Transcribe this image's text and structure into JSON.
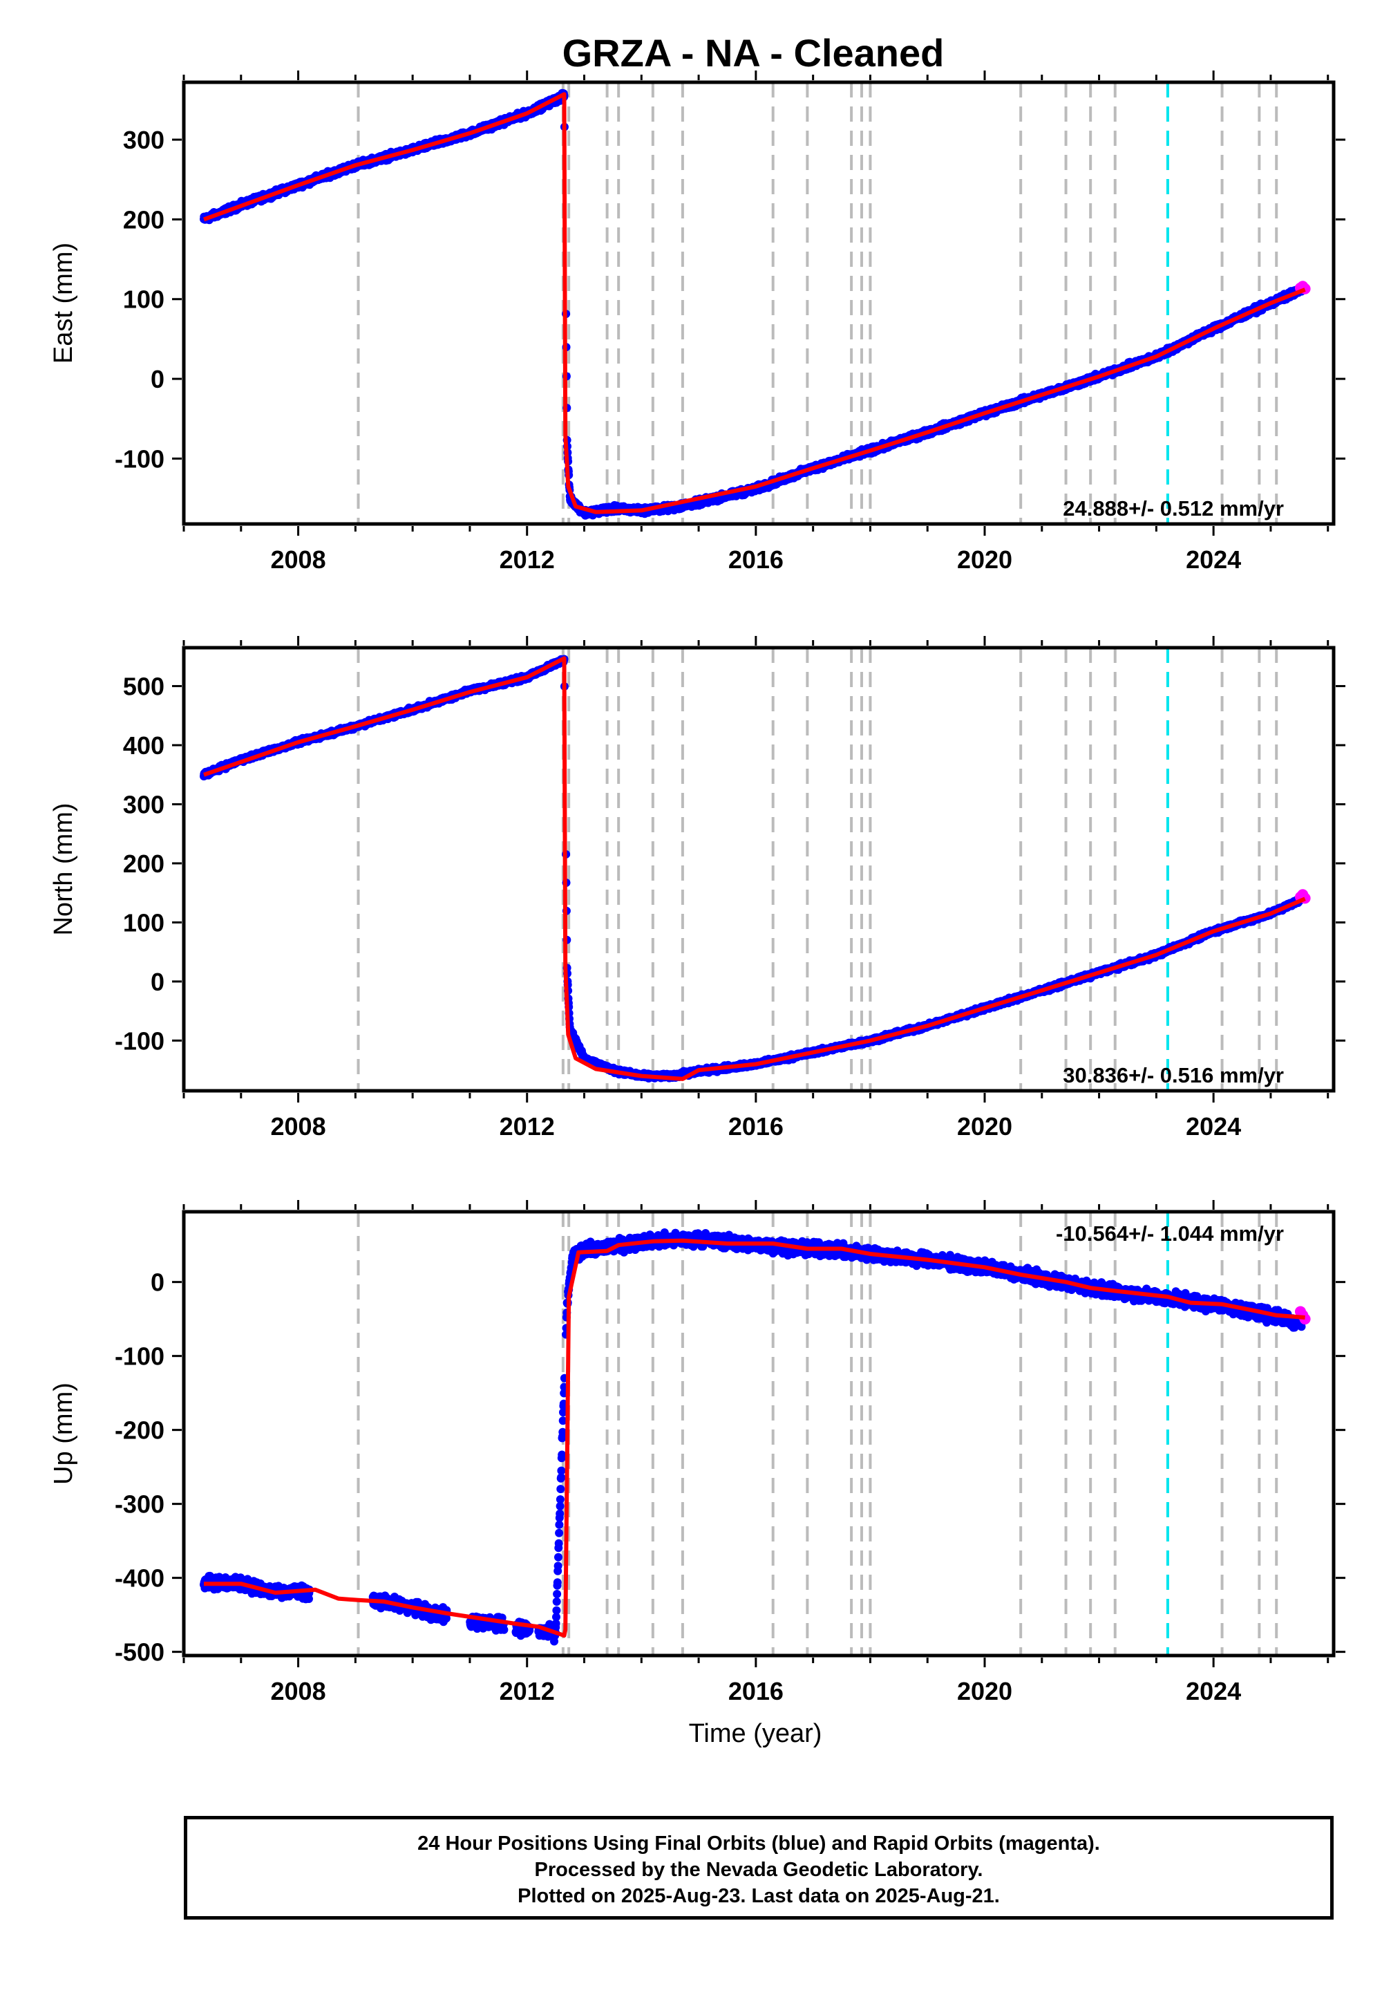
{
  "figure": {
    "title": "GRZA  - NA - Cleaned",
    "xlabel": "Time (year)",
    "footer": [
      "24 Hour Positions Using Final Orbits (blue) and Rapid Orbits (magenta).",
      "Processed by the Nevada Geodetic Laboratory.",
      "Plotted on 2025-Aug-23. Last data on 2025-Aug-21."
    ],
    "colors": {
      "final_orbits": "#0000ff",
      "rapid_orbits": "#ff00ff",
      "model_fit": "#ff0000",
      "event_lines": "#bbbbbb",
      "highlight_event_line": "#00e5ee"
    }
  },
  "chart_data": [
    {
      "type": "scatter",
      "panel": "east",
      "ylabel": "East (mm)",
      "rate_label": "24.888+/- 0.512 mm/yr",
      "xlim": [
        2006.0,
        2026.1
      ],
      "ylim": [
        -182,
        372
      ],
      "xticks": [
        2008,
        2012,
        2016,
        2020,
        2024
      ],
      "yticks": [
        -100,
        0,
        100,
        200,
        300
      ],
      "grid": false,
      "event_lines": [
        2009.05,
        2012.63,
        2012.73,
        2013.4,
        2013.6,
        2014.2,
        2014.72,
        2016.3,
        2016.9,
        2017.67,
        2017.85,
        2018.0,
        2020.63,
        2021.42,
        2021.85,
        2022.28,
        2023.2,
        2024.15,
        2024.8,
        2025.1
      ],
      "highlight_event_line": 2023.2,
      "series": [
        {
          "name": "Final Orbits",
          "x": [
            2006.35,
            2007.0,
            2008.0,
            2009.0,
            2010.0,
            2011.0,
            2012.0,
            2012.65,
            2012.7,
            2012.75,
            2013.0,
            2013.5,
            2014.0,
            2014.5,
            2015.0,
            2016.0,
            2017.0,
            2018.0,
            2019.0,
            2020.0,
            2021.0,
            2022.0,
            2023.0,
            2024.0,
            2025.0,
            2025.55
          ],
          "y": [
            200,
            218,
            243,
            268,
            287,
            308,
            333,
            355,
            -80,
            -150,
            -168,
            -163,
            -165,
            -162,
            -155,
            -138,
            -112,
            -90,
            -67,
            -43,
            -20,
            3,
            28,
            63,
            95,
            112
          ]
        },
        {
          "name": "Rapid Orbits",
          "x": [
            2025.52,
            2025.56,
            2025.6
          ],
          "y": [
            114,
            116,
            113
          ]
        },
        {
          "name": "Model Fit",
          "x": [
            2006.35,
            2008.0,
            2009.0,
            2010.0,
            2011.0,
            2012.0,
            2012.65,
            2012.67,
            2012.72,
            2012.85,
            2013.2,
            2014.0,
            2015.0,
            2016.0,
            2017.0,
            2018.0,
            2019.0,
            2020.0,
            2021.0,
            2022.0,
            2023.0,
            2024.0,
            2025.0,
            2025.6
          ],
          "y": [
            200,
            243,
            268,
            287,
            308,
            333,
            357,
            -70,
            -135,
            -160,
            -167,
            -165,
            -150,
            -135,
            -112,
            -90,
            -67,
            -43,
            -20,
            3,
            28,
            63,
            95,
            112
          ]
        }
      ]
    },
    {
      "type": "scatter",
      "panel": "north",
      "ylabel": "North (mm)",
      "rate_label": "30.836+/- 0.516 mm/yr",
      "xlim": [
        2006.0,
        2026.1
      ],
      "ylim": [
        -185,
        565
      ],
      "xticks": [
        2008,
        2012,
        2016,
        2020,
        2024
      ],
      "yticks": [
        -100,
        0,
        100,
        200,
        300,
        400,
        500
      ],
      "grid": false,
      "event_lines": [
        2009.05,
        2012.63,
        2012.73,
        2013.4,
        2013.6,
        2014.2,
        2014.72,
        2016.3,
        2016.9,
        2017.67,
        2017.85,
        2018.0,
        2020.63,
        2021.42,
        2021.85,
        2022.28,
        2023.2,
        2024.15,
        2024.8,
        2025.1
      ],
      "highlight_event_line": 2023.2,
      "series": [
        {
          "name": "Final Orbits",
          "x": [
            2006.35,
            2007.0,
            2008.0,
            2009.0,
            2010.0,
            2011.0,
            2012.0,
            2012.65,
            2012.7,
            2012.75,
            2013.0,
            2013.5,
            2014.0,
            2014.5,
            2015.0,
            2016.0,
            2017.0,
            2018.0,
            2019.0,
            2020.0,
            2021.0,
            2022.0,
            2023.0,
            2024.0,
            2025.0,
            2025.55
          ],
          "y": [
            350,
            375,
            405,
            432,
            460,
            492,
            515,
            545,
            20,
            -80,
            -130,
            -150,
            -160,
            -160,
            -152,
            -140,
            -120,
            -100,
            -75,
            -45,
            -15,
            15,
            45,
            85,
            115,
            140
          ]
        },
        {
          "name": "Rapid Orbits",
          "x": [
            2025.52,
            2025.56,
            2025.6
          ],
          "y": [
            143,
            147,
            141
          ]
        },
        {
          "name": "Model Fit",
          "x": [
            2006.35,
            2008.0,
            2009.0,
            2010.0,
            2011.0,
            2012.0,
            2012.65,
            2012.67,
            2012.72,
            2012.85,
            2013.2,
            2014.0,
            2014.72,
            2015.0,
            2016.0,
            2017.0,
            2018.0,
            2019.0,
            2020.0,
            2021.0,
            2022.0,
            2023.0,
            2024.0,
            2025.0,
            2025.6
          ],
          "y": [
            350,
            405,
            432,
            460,
            490,
            515,
            547,
            25,
            -90,
            -130,
            -148,
            -160,
            -165,
            -150,
            -140,
            -120,
            -100,
            -75,
            -45,
            -15,
            15,
            45,
            85,
            115,
            140
          ]
        }
      ]
    },
    {
      "type": "scatter",
      "panel": "up",
      "ylabel": "Up (mm)",
      "rate_label": "-10.564+/- 1.044 mm/yr",
      "xlim": [
        2006.0,
        2026.1
      ],
      "ylim": [
        -505,
        95
      ],
      "xticks": [
        2008,
        2012,
        2016,
        2020,
        2024
      ],
      "yticks": [
        -500,
        -400,
        -300,
        -200,
        -100,
        0
      ],
      "grid": false,
      "event_lines": [
        2009.05,
        2012.63,
        2012.73,
        2013.4,
        2013.6,
        2014.2,
        2014.72,
        2016.3,
        2016.9,
        2017.67,
        2017.85,
        2018.0,
        2020.63,
        2021.42,
        2021.85,
        2022.28,
        2023.2,
        2024.15,
        2024.8,
        2025.1
      ],
      "highlight_event_line": 2023.2,
      "series": [
        {
          "name": "Final Orbits",
          "x": [
            2006.35,
            2007.0,
            2007.5,
            2008.0,
            2009.3,
            2010.0,
            2010.5,
            2011.0,
            2011.5,
            2012.0,
            2012.5,
            2012.7,
            2012.8,
            2013.0,
            2014.0,
            2015.0,
            2016.0,
            2017.0,
            2018.0,
            2019.0,
            2020.0,
            2021.0,
            2022.0,
            2023.0,
            2024.0,
            2025.0,
            2025.55
          ],
          "y": [
            -405,
            -408,
            -418,
            -418,
            -430,
            -440,
            -450,
            -458,
            -462,
            -470,
            -475,
            -30,
            35,
            42,
            55,
            58,
            50,
            45,
            38,
            30,
            20,
            5,
            -10,
            -20,
            -30,
            -45,
            -55
          ]
        },
        {
          "name": "Rapid Orbits",
          "x": [
            2025.52,
            2025.56,
            2025.6
          ],
          "y": [
            -40,
            -45,
            -50
          ]
        },
        {
          "name": "Model Fit",
          "x": [
            2006.35,
            2007.0,
            2007.6,
            2008.3,
            2008.7,
            2009.05,
            2009.5,
            2010.0,
            2010.6,
            2011.2,
            2011.8,
            2012.2,
            2012.65,
            2012.67,
            2012.73,
            2012.9,
            2013.4,
            2013.6,
            2014.2,
            2014.72,
            2015.5,
            2016.3,
            2016.9,
            2017.5,
            2018.0,
            2019.0,
            2020.0,
            2020.63,
            2021.42,
            2021.85,
            2022.28,
            2023.2,
            2023.6,
            2024.15,
            2024.8,
            2025.1,
            2025.6
          ],
          "y": [
            -408,
            -408,
            -420,
            -416,
            -428,
            -430,
            -432,
            -440,
            -448,
            -455,
            -462,
            -466,
            -478,
            -470,
            -20,
            40,
            42,
            50,
            55,
            56,
            52,
            52,
            45,
            45,
            38,
            30,
            20,
            10,
            0,
            -8,
            -12,
            -20,
            -28,
            -30,
            -40,
            -45,
            -48
          ]
        }
      ]
    }
  ]
}
